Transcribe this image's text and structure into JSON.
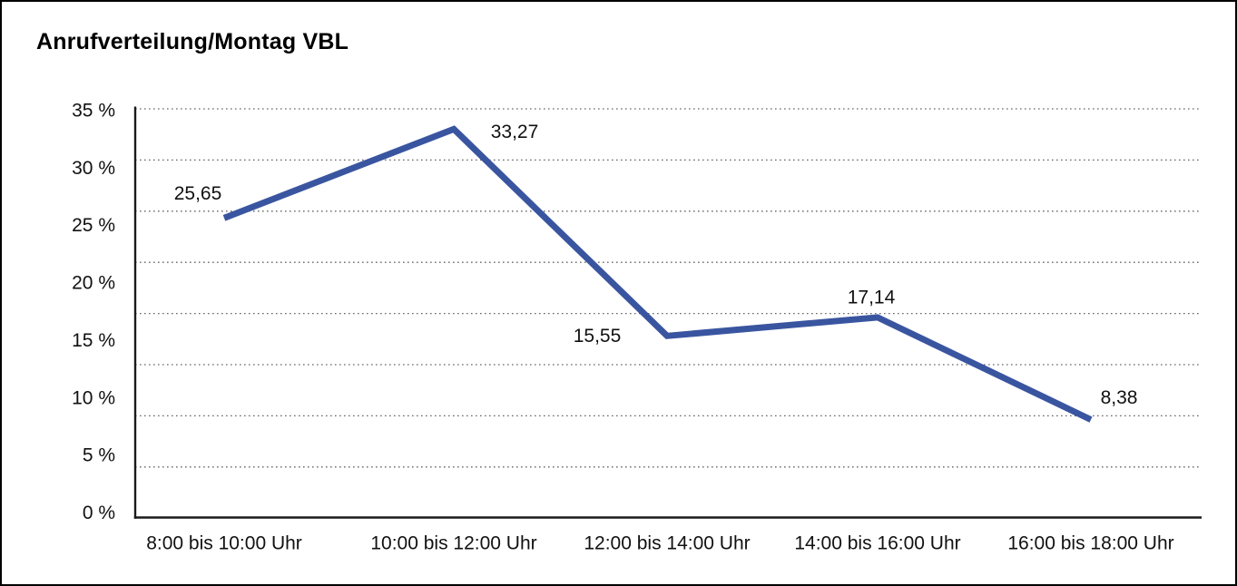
{
  "window": {
    "background": "#ffffff",
    "frame_color": "#000000"
  },
  "chart_data": {
    "type": "line",
    "title": "Anrufverteilung/Montag VBL",
    "categories": [
      "8:00 bis 10:00 Uhr",
      "10:00 bis 12:00 Uhr",
      "12:00 bis 14:00 Uhr",
      "14:00 bis 16:00 Uhr",
      "16:00 bis 18:00 Uhr"
    ],
    "values": [
      25.65,
      33.27,
      15.55,
      17.14,
      8.38
    ],
    "data_labels": [
      "25,65",
      "33,27",
      "15,55",
      "17,14",
      "8,38"
    ],
    "ytick_labels": [
      "35 %",
      "30 %",
      "25 %",
      "20 %",
      "15 %",
      "10 %",
      "5 %",
      "0 %"
    ],
    "ylim": [
      0,
      35
    ],
    "xlabel": "",
    "ylabel": "",
    "unit": "%",
    "grid": "horizontal-dotted",
    "legend": "none",
    "markers": "none",
    "line_color": "#3A55A0",
    "axis_color": "#1a1a1a",
    "gridline_color": "#666666",
    "label_color": "#111111"
  }
}
